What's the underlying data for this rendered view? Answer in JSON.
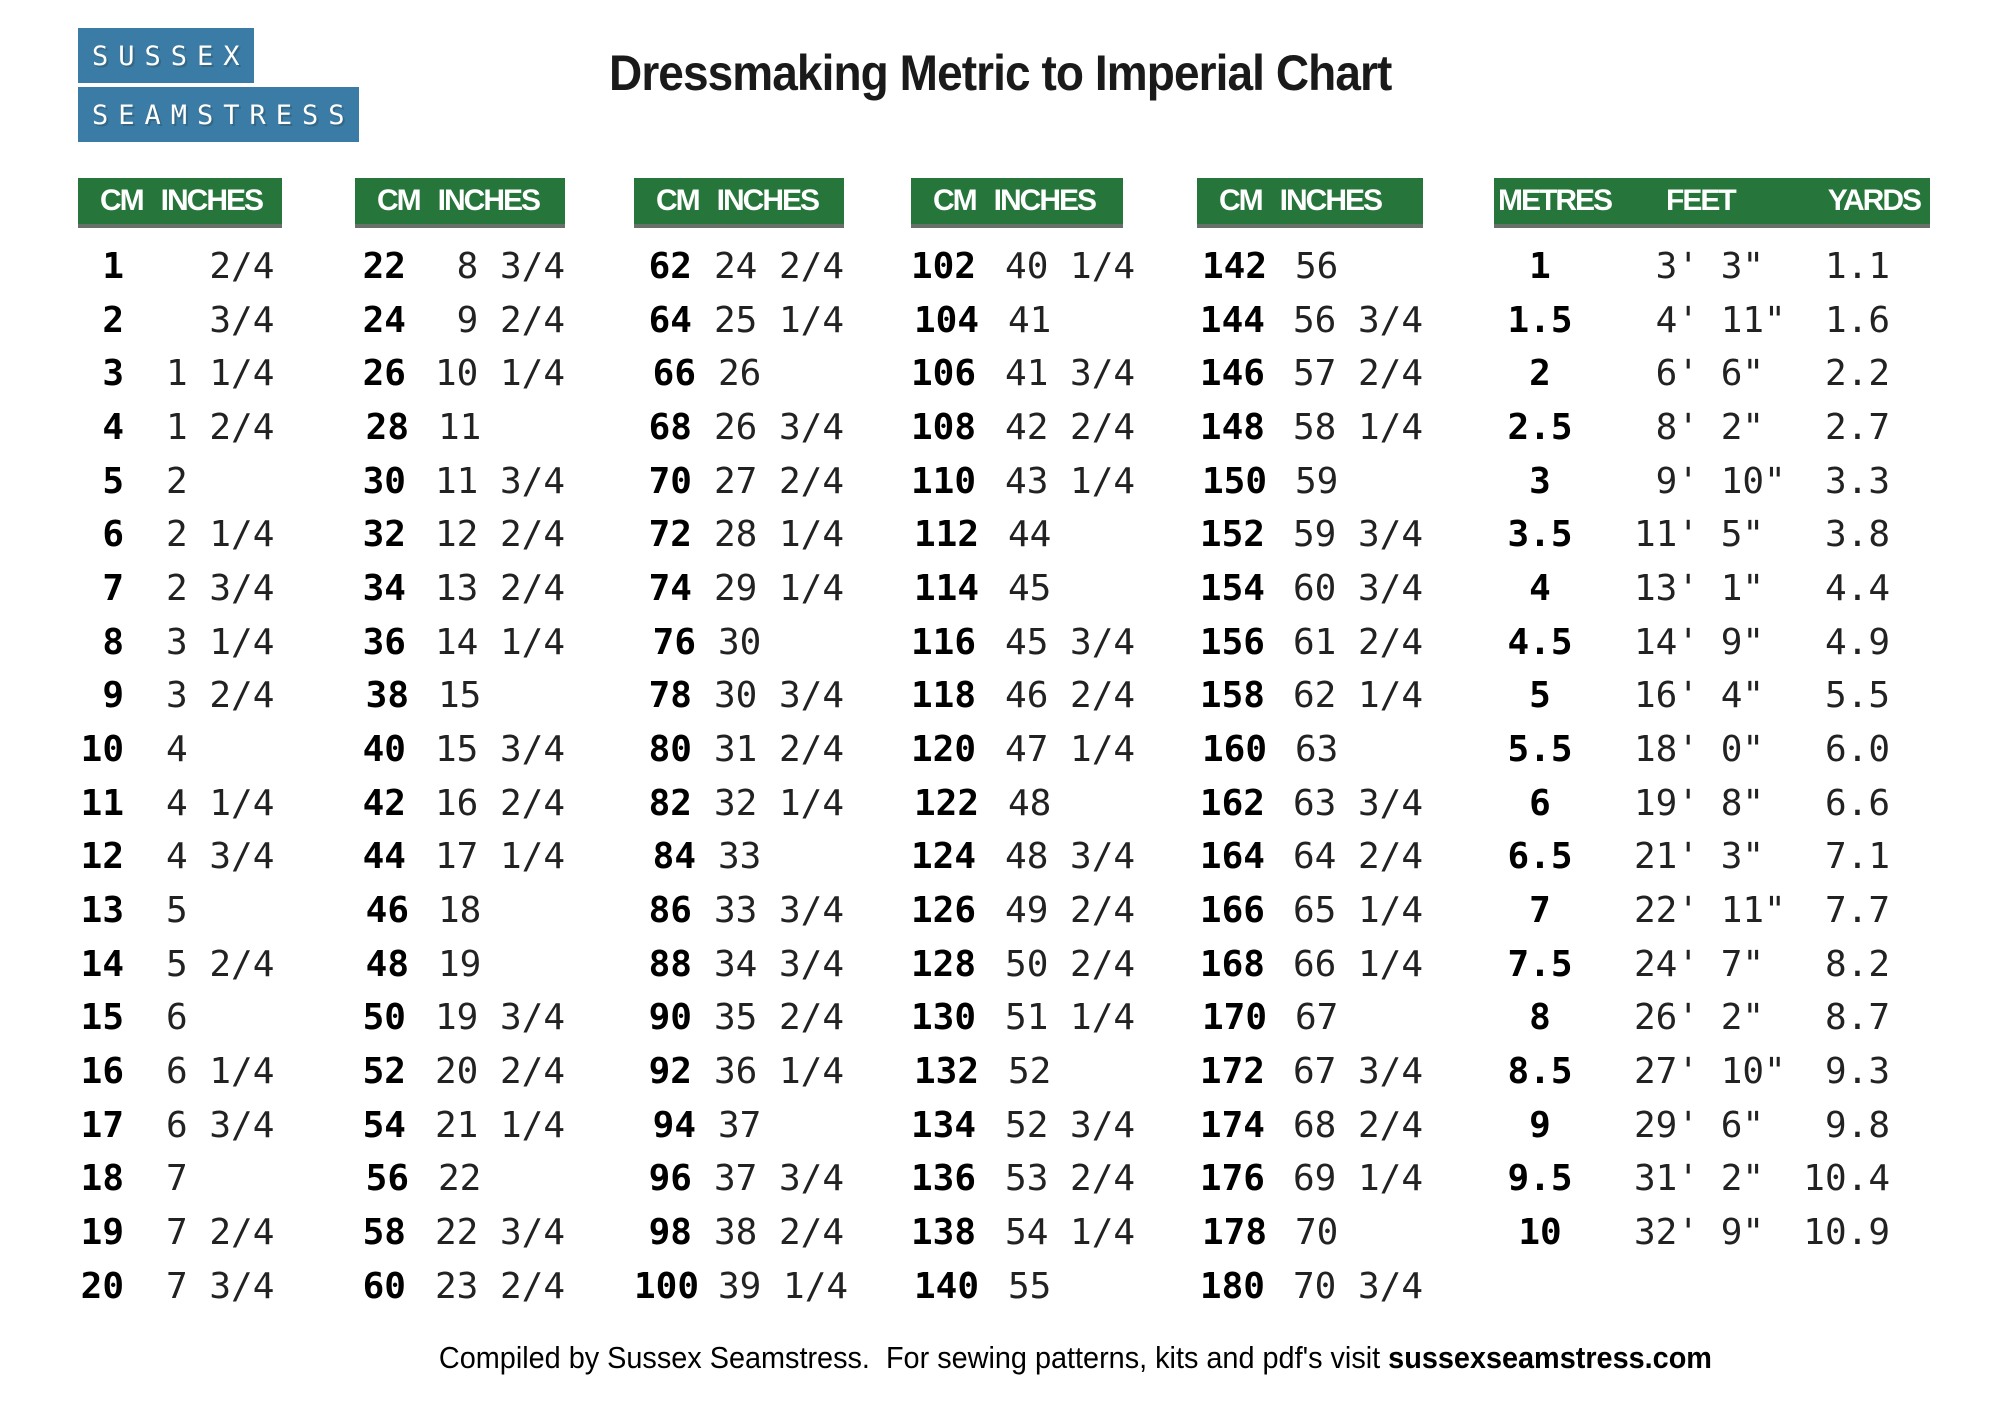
{
  "colors": {
    "logo_blue": "#3a7ca5",
    "header_green": "#26763b"
  },
  "logo": {
    "line1": "SUSSEX",
    "line2": "SEAMSTRESS"
  },
  "title": "Dressmaking Metric to Imperial Chart",
  "cm_tables": [
    {
      "headers": [
        "CM",
        "INCHES"
      ],
      "rows": [
        [
          "1",
          "  2/4"
        ],
        [
          "2",
          "  3/4"
        ],
        [
          "3",
          "1 1/4"
        ],
        [
          "4",
          "1 2/4"
        ],
        [
          "5",
          "2"
        ],
        [
          "6",
          "2 1/4"
        ],
        [
          "7",
          "2 3/4"
        ],
        [
          "8",
          "3 1/4"
        ],
        [
          "9",
          "3 2/4"
        ],
        [
          "10",
          "4"
        ],
        [
          "11",
          "4 1/4"
        ],
        [
          "12",
          "4 3/4"
        ],
        [
          "13",
          "5"
        ],
        [
          "14",
          "5 2/4"
        ],
        [
          "15",
          "6"
        ],
        [
          "16",
          "6 1/4"
        ],
        [
          "17",
          "6 3/4"
        ],
        [
          "18",
          "7"
        ],
        [
          "19",
          "7 2/4"
        ],
        [
          "20",
          "7 3/4"
        ]
      ]
    },
    {
      "headers": [
        "CM",
        "INCHES"
      ],
      "rows": [
        [
          "22",
          " 8 3/4"
        ],
        [
          "24",
          " 9 2/4"
        ],
        [
          "26",
          "10 1/4"
        ],
        [
          "28",
          "11"
        ],
        [
          "30",
          "11 3/4"
        ],
        [
          "32",
          "12 2/4"
        ],
        [
          "34",
          "13 2/4"
        ],
        [
          "36",
          "14 1/4"
        ],
        [
          "38",
          "15"
        ],
        [
          "40",
          "15 3/4"
        ],
        [
          "42",
          "16 2/4"
        ],
        [
          "44",
          "17 1/4"
        ],
        [
          "46",
          "18"
        ],
        [
          "48",
          "19"
        ],
        [
          "50",
          "19 3/4"
        ],
        [
          "52",
          "20 2/4"
        ],
        [
          "54",
          "21 1/4"
        ],
        [
          "56",
          "22"
        ],
        [
          "58",
          "22 3/4"
        ],
        [
          "60",
          "23 2/4"
        ]
      ]
    },
    {
      "headers": [
        "CM",
        "INCHES"
      ],
      "rows": [
        [
          "62",
          "24 2/4"
        ],
        [
          "64",
          "25 1/4"
        ],
        [
          "66",
          "26"
        ],
        [
          "68",
          "26 3/4"
        ],
        [
          "70",
          "27 2/4"
        ],
        [
          "72",
          "28 1/4"
        ],
        [
          "74",
          "29 1/4"
        ],
        [
          "76",
          "30"
        ],
        [
          "78",
          "30 3/4"
        ],
        [
          "80",
          "31 2/4"
        ],
        [
          "82",
          "32 1/4"
        ],
        [
          "84",
          "33"
        ],
        [
          "86",
          "33 3/4"
        ],
        [
          "88",
          "34 3/4"
        ],
        [
          "90",
          "35 2/4"
        ],
        [
          "92",
          "36 1/4"
        ],
        [
          "94",
          "37"
        ],
        [
          "96",
          "37 3/4"
        ],
        [
          "98",
          "38 2/4"
        ],
        [
          "100",
          "39 1/4"
        ]
      ]
    },
    {
      "headers": [
        "CM",
        "INCHES"
      ],
      "rows": [
        [
          "102",
          "40 1/4"
        ],
        [
          "104",
          "41"
        ],
        [
          "106",
          "41 3/4"
        ],
        [
          "108",
          "42 2/4"
        ],
        [
          "110",
          "43 1/4"
        ],
        [
          "112",
          "44"
        ],
        [
          "114",
          "45"
        ],
        [
          "116",
          "45 3/4"
        ],
        [
          "118",
          "46 2/4"
        ],
        [
          "120",
          "47 1/4"
        ],
        [
          "122",
          "48"
        ],
        [
          "124",
          "48 3/4"
        ],
        [
          "126",
          "49 2/4"
        ],
        [
          "128",
          "50 2/4"
        ],
        [
          "130",
          "51 1/4"
        ],
        [
          "132",
          "52"
        ],
        [
          "134",
          "52 3/4"
        ],
        [
          "136",
          "53 2/4"
        ],
        [
          "138",
          "54 1/4"
        ],
        [
          "140",
          "55"
        ]
      ]
    },
    {
      "headers": [
        "CM",
        "INCHES"
      ],
      "rows": [
        [
          "142",
          "56"
        ],
        [
          "144",
          "56 3/4"
        ],
        [
          "146",
          "57 2/4"
        ],
        [
          "148",
          "58 1/4"
        ],
        [
          "150",
          "59"
        ],
        [
          "152",
          "59 3/4"
        ],
        [
          "154",
          "60 3/4"
        ],
        [
          "156",
          "61 2/4"
        ],
        [
          "158",
          "62 1/4"
        ],
        [
          "160",
          "63"
        ],
        [
          "162",
          "63 3/4"
        ],
        [
          "164",
          "64 2/4"
        ],
        [
          "166",
          "65 1/4"
        ],
        [
          "168",
          "66 1/4"
        ],
        [
          "170",
          "67"
        ],
        [
          "172",
          "67 3/4"
        ],
        [
          "174",
          "68 2/4"
        ],
        [
          "176",
          "69 1/4"
        ],
        [
          "178",
          "70"
        ],
        [
          "180",
          "70 3/4"
        ]
      ]
    }
  ],
  "metres_table": {
    "headers": [
      "METRES",
      "FEET",
      "YARDS"
    ],
    "rows": [
      [
        "1",
        " 3' 3\"",
        "1.1"
      ],
      [
        "1.5",
        " 4' 11\"",
        "1.6"
      ],
      [
        "2",
        " 6' 6\"",
        "2.2"
      ],
      [
        "2.5",
        " 8' 2\"",
        "2.7"
      ],
      [
        "3",
        " 9' 10\"",
        "3.3"
      ],
      [
        "3.5",
        "11' 5\"",
        "3.8"
      ],
      [
        "4",
        "13' 1\"",
        "4.4"
      ],
      [
        "4.5",
        "14' 9\"",
        "4.9"
      ],
      [
        "5",
        "16' 4\"",
        "5.5"
      ],
      [
        "5.5",
        "18' 0\"",
        "6.0"
      ],
      [
        "6",
        "19' 8\"",
        "6.6"
      ],
      [
        "6.5",
        "21' 3\"",
        "7.1"
      ],
      [
        "7",
        "22' 11\"",
        "7.7"
      ],
      [
        "7.5",
        "24' 7\"",
        "8.2"
      ],
      [
        "8",
        "26' 2\"",
        "8.7"
      ],
      [
        "8.5",
        "27' 10\"",
        "9.3"
      ],
      [
        "9",
        "29' 6\"",
        "9.8"
      ],
      [
        "9.5",
        "31' 2\"",
        "10.4"
      ],
      [
        "10",
        "32' 9\"",
        "10.9"
      ]
    ]
  },
  "footer": {
    "prefix": "Compiled by Sussex Seamstress.  For sewing patterns, kits and pdf's visit ",
    "link": "sussexseamstress.com"
  }
}
